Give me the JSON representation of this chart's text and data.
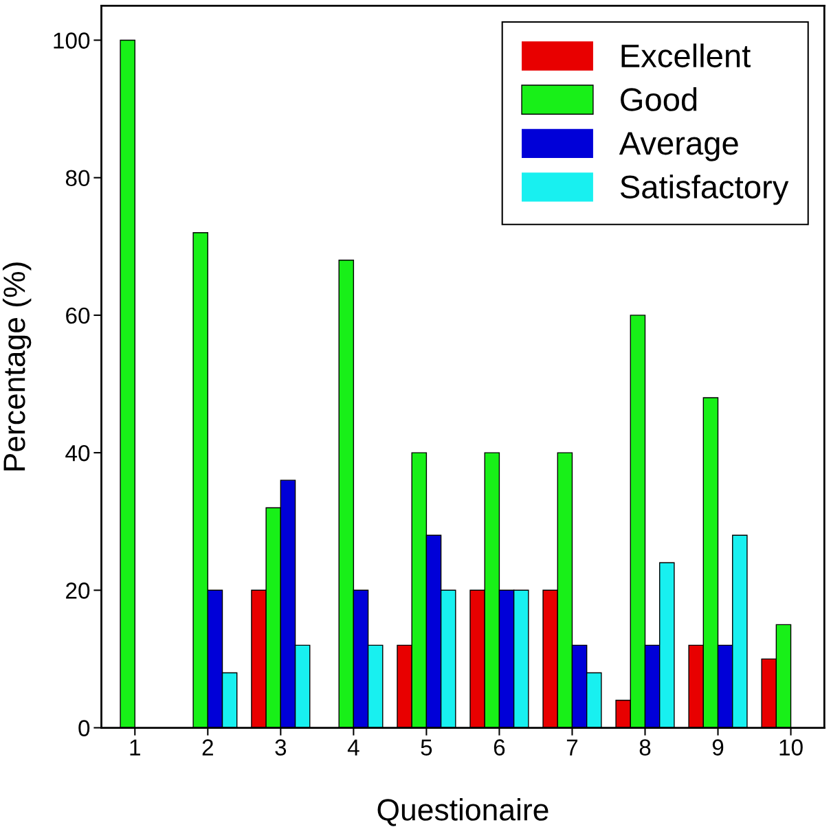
{
  "chart_data": {
    "type": "bar",
    "xlabel": "Questionaire",
    "ylabel": "Percentage (%)",
    "categories": [
      "1",
      "2",
      "3",
      "4",
      "5",
      "6",
      "7",
      "8",
      "9",
      "10"
    ],
    "series": [
      {
        "name": "Excellent",
        "color": "#e80000",
        "values": [
          0,
          0,
          20,
          0,
          12,
          20,
          20,
          4,
          12,
          10
        ]
      },
      {
        "name": "Good",
        "color": "#18f018",
        "values": [
          100,
          72,
          32,
          68,
          40,
          40,
          40,
          60,
          48,
          15
        ]
      },
      {
        "name": "Average",
        "color": "#0000d8",
        "values": [
          0,
          20,
          36,
          20,
          28,
          20,
          12,
          12,
          12,
          0
        ]
      },
      {
        "name": "Satisfactory",
        "color": "#18f0f0",
        "values": [
          0,
          8,
          12,
          12,
          20,
          20,
          8,
          24,
          28,
          0
        ]
      }
    ],
    "ylim": [
      0,
      105
    ],
    "yticks": [
      0,
      20,
      40,
      60,
      80,
      100
    ],
    "grid": false,
    "legend": "top right"
  }
}
